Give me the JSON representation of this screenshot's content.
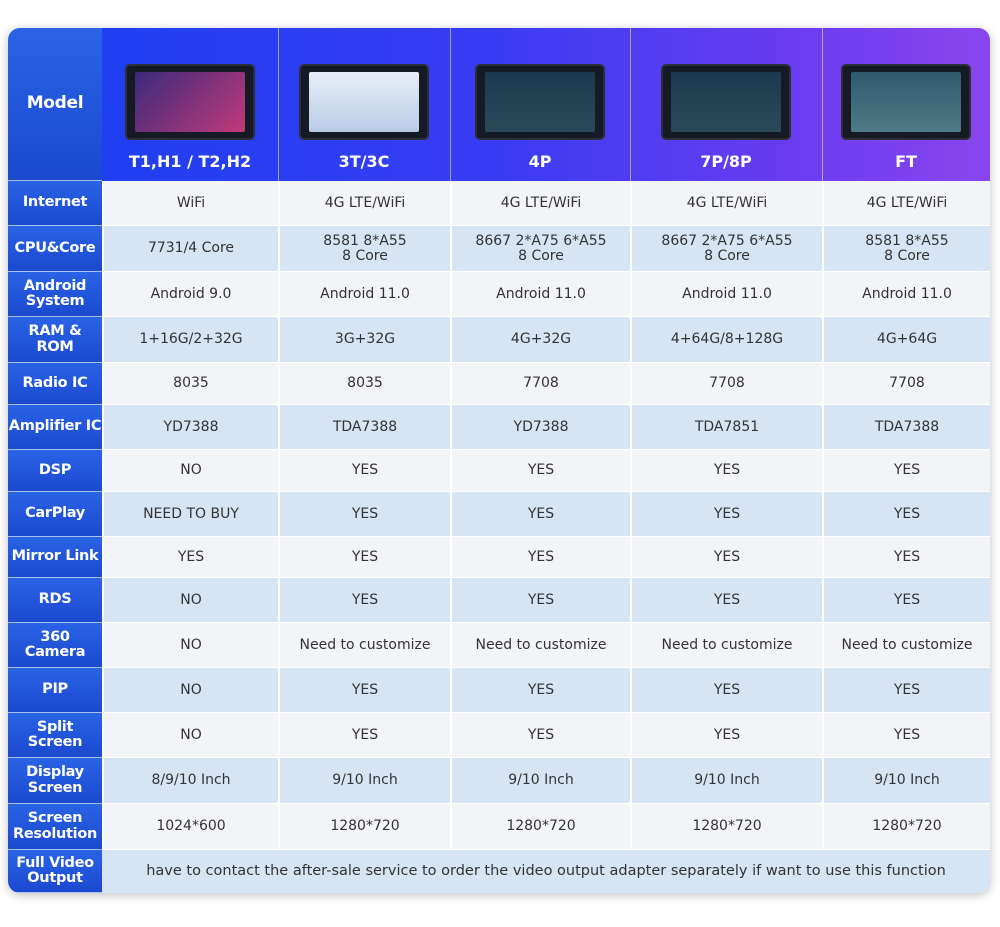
{
  "table": {
    "corner": "Model",
    "columns": [
      "T1,H1 / T2,H2",
      "3T/3C",
      "4P",
      "7P/8P",
      "FT"
    ],
    "rows": [
      {
        "label": "Internet",
        "cells": [
          "WiFi",
          "4G LTE/WiFi",
          "4G LTE/WiFi",
          "4G LTE/WiFi",
          "4G LTE/WiFi"
        ]
      },
      {
        "label": "CPU&Core",
        "cells": [
          "7731/4 Core",
          "8581 8*A55\n8 Core",
          "8667 2*A75 6*A55\n8 Core",
          "8667 2*A75 6*A55\n8 Core",
          "8581 8*A55\n8 Core"
        ]
      },
      {
        "label": "Android\nSystem",
        "cells": [
          "Android 9.0",
          "Android 11.0",
          "Android 11.0",
          "Android 11.0",
          "Android 11.0"
        ]
      },
      {
        "label": "RAM & ROM",
        "cells": [
          "1+16G/2+32G",
          "3G+32G",
          "4G+32G",
          "4+64G/8+128G",
          "4G+64G"
        ]
      },
      {
        "label": "Radio IC",
        "cells": [
          "8035",
          "8035",
          "7708",
          "7708",
          "7708"
        ]
      },
      {
        "label": "Amplifier IC",
        "cells": [
          "YD7388",
          "TDA7388",
          "YD7388",
          "TDA7851",
          "TDA7388"
        ]
      },
      {
        "label": "DSP",
        "cells": [
          "NO",
          "YES",
          "YES",
          "YES",
          "YES"
        ]
      },
      {
        "label": "CarPlay",
        "cells": [
          "NEED TO BUY",
          "YES",
          "YES",
          "YES",
          "YES"
        ]
      },
      {
        "label": "Mirror Link",
        "cells": [
          "YES",
          "YES",
          "YES",
          "YES",
          "YES"
        ]
      },
      {
        "label": "RDS",
        "cells": [
          "NO",
          "YES",
          "YES",
          "YES",
          "YES"
        ]
      },
      {
        "label": "360 Camera",
        "cells": [
          "NO",
          "Need to customize",
          "Need to customize",
          "Need to customize",
          "Need to customize"
        ]
      },
      {
        "label": "PIP",
        "cells": [
          "NO",
          "YES",
          "YES",
          "YES",
          "YES"
        ]
      },
      {
        "label": "Split Screen",
        "cells": [
          "NO",
          "YES",
          "YES",
          "YES",
          "YES"
        ]
      },
      {
        "label": "Display\nScreen",
        "cells": [
          "8/9/10 Inch",
          "9/10 Inch",
          "9/10 Inch",
          "9/10 Inch",
          "9/10 Inch"
        ]
      },
      {
        "label": "Screen\nResolution",
        "cells": [
          "1024*600",
          "1280*720",
          "1280*720",
          "1280*720",
          "1280*720"
        ]
      }
    ],
    "footer": {
      "label": "Full Video\nOutput",
      "text": "have to contact the after-sale service to order the video output adapter separately if want to use this function"
    }
  }
}
